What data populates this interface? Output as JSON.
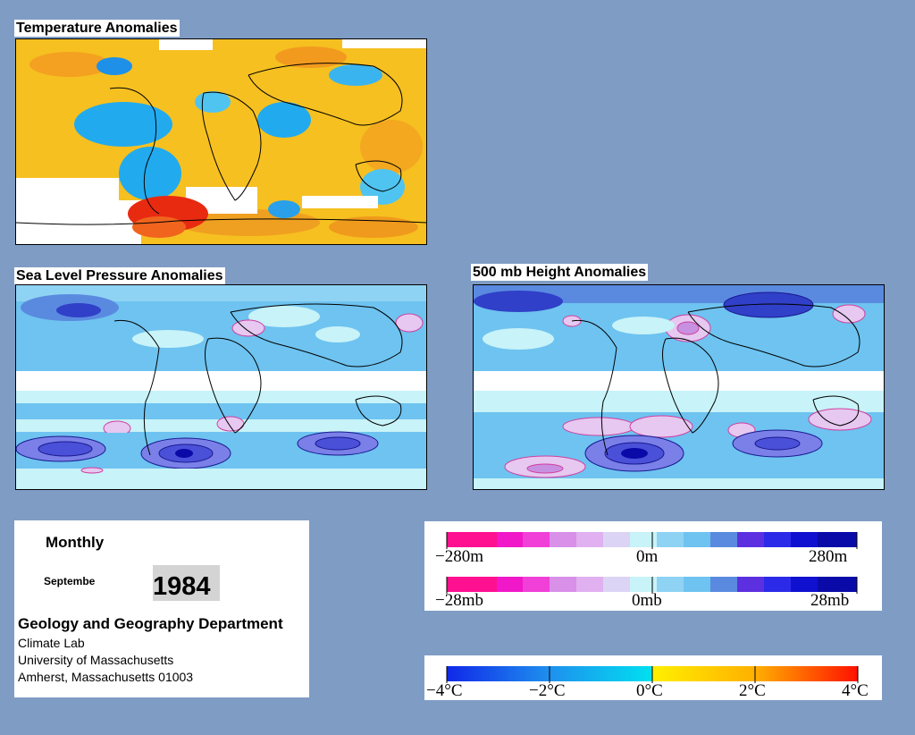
{
  "panels": {
    "temperature": {
      "title": "Temperature Anomalies"
    },
    "slp": {
      "title": "Sea Level Pressure Anomalies"
    },
    "height500": {
      "title": "500 mb Height Anomalies"
    }
  },
  "info": {
    "frequency": "Monthly",
    "month": "Septembe",
    "year": "1984",
    "department": "Geology and Geography Department",
    "lab": "Climate Lab",
    "university": "University of Massachusetts",
    "address": "Amherst, Massachusetts 01003"
  },
  "legends": {
    "height": {
      "min": "−280m",
      "mid": "0m",
      "max": "280m"
    },
    "pressure": {
      "min": "−28mb",
      "mid": "0mb",
      "max": "28mb"
    },
    "temperature": {
      "t1": "−4°C",
      "t2": "−2°C",
      "t3": "0°C",
      "t4": "2°C",
      "t5": "4°C"
    }
  },
  "colors": {
    "background": "#7f9cc4",
    "neg_strong": "#0a0aa8",
    "neg_mid": "#5a64e0",
    "neg_light": "#6ec3f0",
    "neg_faint": "#c8f3f8",
    "pos_faint": "#e6c8f0",
    "pos_mid": "#f040c8",
    "pos_strong": "#ff1090",
    "warm": "#ffc81e",
    "hot": "#e82a10",
    "cold": "#22aaee"
  }
}
